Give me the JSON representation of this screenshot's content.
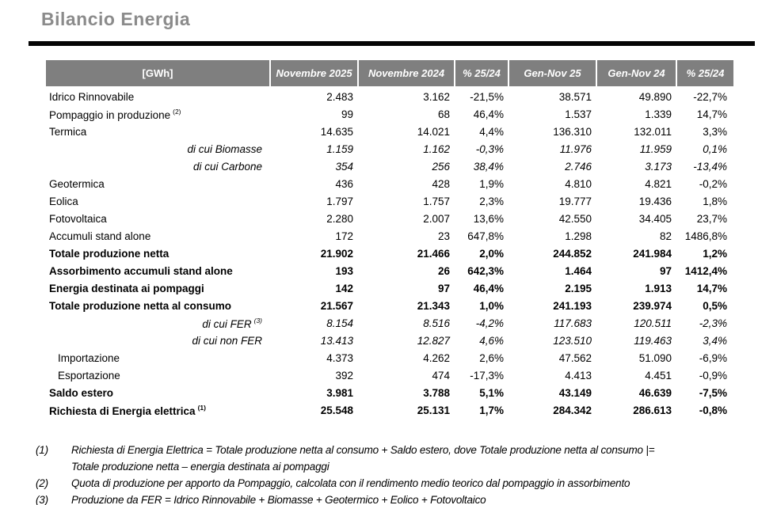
{
  "title": "Bilancio Energia",
  "colors": {
    "header_bg": "#7f7f7f",
    "header_text": "#ffffff",
    "title_text": "#8b8b8b",
    "rule": "#050505",
    "body_text": "#000000"
  },
  "table": {
    "columns": [
      "[GWh]",
      "Novembre 2025",
      "Novembre 2024",
      "% 25/24",
      "Gen-Nov 25",
      "Gen-Nov 24",
      "% 25/24"
    ],
    "rows": [
      {
        "label": "Idrico Rinnovabile",
        "sup": "",
        "style": "normal",
        "values": [
          "2.483",
          "3.162",
          "-21,5%",
          "38.571",
          "49.890",
          "-22,7%"
        ]
      },
      {
        "label": "Pompaggio in produzione",
        "sup": "(2)",
        "style": "normal",
        "values": [
          "99",
          "68",
          "46,4%",
          "1.537",
          "1.339",
          "14,7%"
        ]
      },
      {
        "label": "Termica",
        "sup": "",
        "style": "normal",
        "values": [
          "14.635",
          "14.021",
          "4,4%",
          "136.310",
          "132.011",
          "3,3%"
        ]
      },
      {
        "label": "di cui Biomasse",
        "sup": "",
        "style": "dicui",
        "values": [
          "1.159",
          "1.162",
          "-0,3%",
          "11.976",
          "11.959",
          "0,1%"
        ]
      },
      {
        "label": "di cui Carbone",
        "sup": "",
        "style": "dicui",
        "values": [
          "354",
          "256",
          "38,4%",
          "2.746",
          "3.173",
          "-13,4%"
        ]
      },
      {
        "label": "Geotermica",
        "sup": "",
        "style": "normal",
        "values": [
          "436",
          "428",
          "1,9%",
          "4.810",
          "4.821",
          "-0,2%"
        ]
      },
      {
        "label": "Eolica",
        "sup": "",
        "style": "normal",
        "values": [
          "1.797",
          "1.757",
          "2,3%",
          "19.777",
          "19.436",
          "1,8%"
        ]
      },
      {
        "label": "Fotovoltaica",
        "sup": "",
        "style": "normal",
        "values": [
          "2.280",
          "2.007",
          "13,6%",
          "42.550",
          "34.405",
          "23,7%"
        ]
      },
      {
        "label": "Accumuli stand alone",
        "sup": "",
        "style": "normal",
        "values": [
          "172",
          "23",
          "647,8%",
          "1.298",
          "82",
          "1486,8%"
        ]
      },
      {
        "label": "Totale produzione netta",
        "sup": "",
        "style": "bold",
        "values": [
          "21.902",
          "21.466",
          "2,0%",
          "244.852",
          "241.984",
          "1,2%"
        ]
      },
      {
        "label": "Assorbimento accumuli stand alone",
        "sup": "",
        "style": "bold",
        "values": [
          "193",
          "26",
          "642,3%",
          "1.464",
          "97",
          "1412,4%"
        ]
      },
      {
        "label": "Energia destinata ai pompaggi",
        "sup": "",
        "style": "bold",
        "values": [
          "142",
          "97",
          "46,4%",
          "2.195",
          "1.913",
          "14,7%"
        ]
      },
      {
        "label": "Totale produzione netta al consumo",
        "sup": "",
        "style": "bold",
        "values": [
          "21.567",
          "21.343",
          "1,0%",
          "241.193",
          "239.974",
          "0,5%"
        ]
      },
      {
        "label": "di cui FER",
        "sup": "(3)",
        "style": "dicui",
        "values": [
          "8.154",
          "8.516",
          "-4,2%",
          "117.683",
          "120.511",
          "-2,3%"
        ]
      },
      {
        "label": "di cui non FER",
        "sup": "",
        "style": "dicui",
        "values": [
          "13.413",
          "12.827",
          "4,6%",
          "123.510",
          "119.463",
          "3,4%"
        ]
      },
      {
        "label": "Importazione",
        "sup": "",
        "style": "indent",
        "values": [
          "4.373",
          "4.262",
          "2,6%",
          "47.562",
          "51.090",
          "-6,9%"
        ]
      },
      {
        "label": "Esportazione",
        "sup": "",
        "style": "indent",
        "values": [
          "392",
          "474",
          "-17,3%",
          "4.413",
          "4.451",
          "-0,9%"
        ]
      },
      {
        "label": "Saldo estero",
        "sup": "",
        "style": "bold",
        "values": [
          "3.981",
          "3.788",
          "5,1%",
          "43.149",
          "46.639",
          "-7,5%"
        ]
      },
      {
        "label": "Richiesta di Energia elettrica",
        "sup": "(1)",
        "style": "bold",
        "values": [
          "25.548",
          "25.131",
          "1,7%",
          "284.342",
          "286.613",
          "-0,8%"
        ]
      }
    ]
  },
  "footnotes": [
    {
      "marker": "(1)",
      "lines": [
        "Richiesta di Energia Elettrica = Totale produzione netta al consumo + Saldo estero, dove Totale produzione netta al consumo |=",
        "Totale produzione netta – energia destinata ai pompaggi"
      ]
    },
    {
      "marker": "(2)",
      "lines": [
        "Quota di produzione per apporto da Pompaggio, calcolata con il rendimento medio teorico dal pompaggio in assorbimento"
      ]
    },
    {
      "marker": "(3)",
      "lines": [
        "Produzione da FER = Idrico Rinnovabile + Biomasse + Geotermico + Eolico + Fotovoltaico"
      ]
    }
  ]
}
